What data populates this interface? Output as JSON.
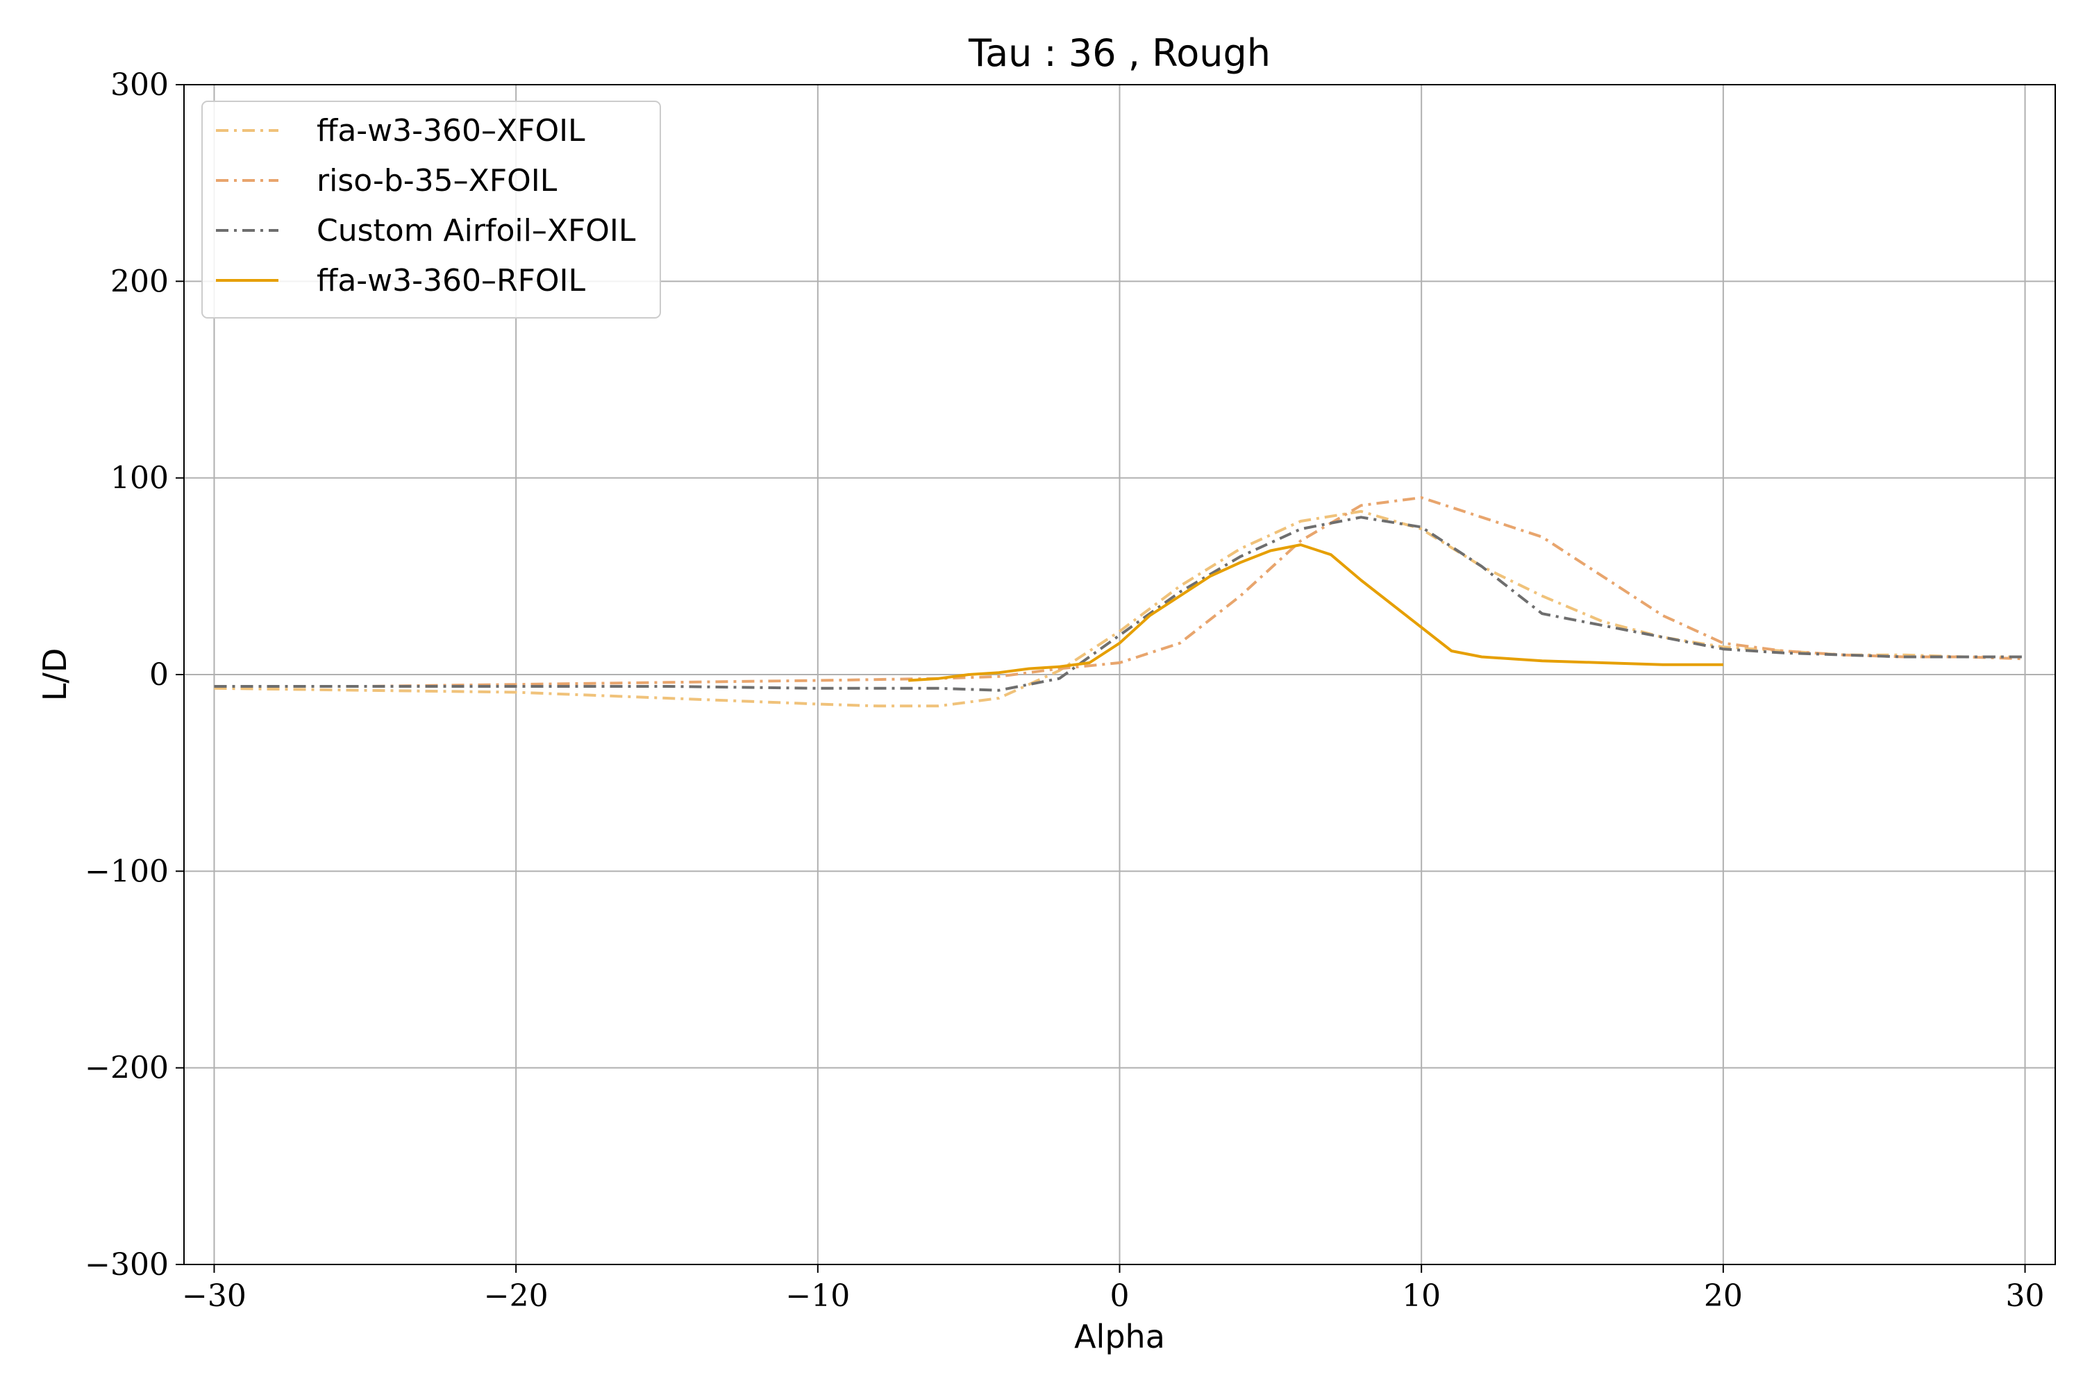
{
  "chart_data": {
    "type": "line",
    "title": "Tau : 36 , Rough",
    "xlabel": "Alpha",
    "ylabel": "L/D",
    "xlim": [
      -31,
      31
    ],
    "ylim": [
      -300,
      300
    ],
    "xticks": [
      -30,
      -20,
      -10,
      0,
      10,
      20,
      30
    ],
    "yticks": [
      -300,
      -200,
      -100,
      0,
      100,
      200,
      300
    ],
    "xtick_labels": [
      "−30",
      "−20",
      "−10",
      "0",
      "10",
      "20",
      "30"
    ],
    "ytick_labels": [
      "−300",
      "−200",
      "−100",
      "0",
      "100",
      "200",
      "300"
    ],
    "grid": true,
    "legend_position": "upper-left",
    "series": [
      {
        "name": "ffa-w3-360–XFOIL",
        "color": "#f0c27a",
        "style": "dashdot",
        "x": [
          -30,
          -25,
          -20,
          -15,
          -10,
          -8,
          -6,
          -4,
          -2,
          0,
          2,
          4,
          6,
          8,
          10,
          12,
          14,
          16,
          18,
          20,
          22,
          24,
          26,
          28,
          30
        ],
        "y": [
          -7,
          -8,
          -9,
          -12,
          -15,
          -16,
          -16,
          -12,
          2,
          22,
          45,
          64,
          78,
          83,
          74,
          55,
          40,
          27,
          19,
          14,
          12,
          10,
          10,
          9,
          9
        ]
      },
      {
        "name": "riso-b-35–XFOIL",
        "color": "#e8a56d",
        "style": "dashdot",
        "x": [
          -30,
          -25,
          -20,
          -15,
          -10,
          -6,
          -4,
          -2,
          0,
          2,
          4,
          6,
          8,
          10,
          12,
          14,
          16,
          18,
          20,
          22,
          24,
          26,
          28,
          30
        ],
        "y": [
          -6,
          -6,
          -5,
          -4,
          -3,
          -2,
          -1,
          3,
          6,
          16,
          40,
          68,
          86,
          90,
          80,
          70,
          50,
          30,
          16,
          12,
          10,
          9,
          9,
          8
        ]
      },
      {
        "name": "Custom Airfoil–XFOIL",
        "color": "#6e6e6e",
        "style": "dashdot",
        "x": [
          -30,
          -25,
          -20,
          -15,
          -10,
          -6,
          -4,
          -2,
          0,
          2,
          4,
          6,
          8,
          10,
          12,
          14,
          16,
          18,
          20,
          22,
          24,
          26,
          28,
          30
        ],
        "y": [
          -6,
          -6,
          -6,
          -6,
          -7,
          -7,
          -8,
          -2,
          20,
          42,
          60,
          74,
          80,
          75,
          55,
          31,
          25,
          19,
          13,
          11,
          10,
          9,
          9,
          9
        ]
      },
      {
        "name": "ffa-w3-360–RFOIL",
        "color": "#e69f00",
        "style": "solid",
        "x": [
          -7,
          -6,
          -5,
          -4,
          -3,
          -2,
          -1,
          0,
          1,
          2,
          3,
          4,
          5,
          6,
          7,
          8,
          9,
          10,
          11,
          12,
          14,
          16,
          18,
          20
        ],
        "y": [
          -3,
          -2,
          0,
          1,
          3,
          4,
          6,
          16,
          30,
          40,
          50,
          57,
          63,
          66,
          61,
          48,
          36,
          24,
          12,
          9,
          7,
          6,
          5,
          5
        ]
      }
    ]
  }
}
